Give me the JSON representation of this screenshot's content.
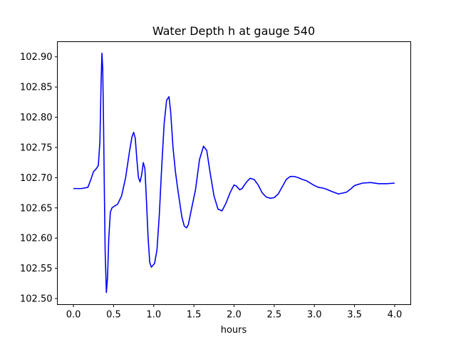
{
  "chart_data": {
    "type": "line",
    "title": "Water Depth h at gauge 540",
    "xlabel": "hours",
    "ylabel": "",
    "xlim": [
      -0.2,
      4.2
    ],
    "ylim": [
      102.49,
      102.925
    ],
    "xticks": [
      0.0,
      0.5,
      1.0,
      1.5,
      2.0,
      2.5,
      3.0,
      3.5,
      4.0
    ],
    "xtick_labels": [
      "0.0",
      "0.5",
      "1.0",
      "1.5",
      "2.0",
      "2.5",
      "3.0",
      "3.5",
      "4.0"
    ],
    "yticks": [
      102.5,
      102.55,
      102.6,
      102.65,
      102.7,
      102.75,
      102.8,
      102.85,
      102.9
    ],
    "ytick_labels": [
      "102.50",
      "102.55",
      "102.60",
      "102.65",
      "102.70",
      "102.75",
      "102.80",
      "102.85",
      "102.90"
    ],
    "grid": false,
    "series": [
      {
        "color": "#0000ff",
        "x": [
          0.0,
          0.1,
          0.18,
          0.22,
          0.25,
          0.28,
          0.31,
          0.33,
          0.345,
          0.355,
          0.365,
          0.375,
          0.385,
          0.395,
          0.41,
          0.425,
          0.44,
          0.46,
          0.48,
          0.5,
          0.55,
          0.6,
          0.65,
          0.7,
          0.73,
          0.75,
          0.77,
          0.79,
          0.81,
          0.83,
          0.85,
          0.87,
          0.89,
          0.91,
          0.93,
          0.95,
          0.97,
          0.99,
          1.01,
          1.04,
          1.07,
          1.1,
          1.13,
          1.16,
          1.19,
          1.21,
          1.24,
          1.27,
          1.3,
          1.35,
          1.38,
          1.41,
          1.43,
          1.47,
          1.52,
          1.57,
          1.62,
          1.66,
          1.7,
          1.75,
          1.8,
          1.85,
          1.9,
          1.95,
          2.0,
          2.03,
          2.07,
          2.1,
          2.15,
          2.2,
          2.25,
          2.3,
          2.35,
          2.4,
          2.45,
          2.5,
          2.55,
          2.6,
          2.65,
          2.7,
          2.75,
          2.8,
          2.85,
          2.9,
          3.0,
          3.05,
          3.1,
          3.15,
          3.2,
          3.3,
          3.4,
          3.45,
          3.5,
          3.55,
          3.6,
          3.7,
          3.8,
          3.9,
          4.0
        ],
        "y": [
          102.682,
          102.682,
          102.684,
          102.698,
          102.71,
          102.714,
          102.72,
          102.76,
          102.86,
          102.906,
          102.88,
          102.79,
          102.68,
          102.58,
          102.51,
          102.535,
          102.6,
          102.643,
          102.65,
          102.652,
          102.656,
          102.67,
          102.7,
          102.745,
          102.768,
          102.775,
          102.765,
          102.73,
          102.7,
          102.693,
          102.705,
          102.725,
          102.715,
          102.66,
          102.6,
          102.56,
          102.552,
          102.555,
          102.558,
          102.58,
          102.64,
          102.72,
          102.79,
          102.828,
          102.834,
          102.81,
          102.75,
          102.71,
          102.68,
          102.635,
          102.62,
          102.617,
          102.622,
          102.648,
          102.68,
          102.73,
          102.752,
          102.745,
          102.71,
          102.67,
          102.648,
          102.645,
          102.658,
          102.675,
          102.688,
          102.686,
          102.68,
          102.682,
          102.692,
          102.699,
          102.697,
          102.688,
          102.675,
          102.668,
          102.666,
          102.667,
          102.673,
          102.685,
          102.697,
          102.702,
          102.702,
          102.7,
          102.697,
          102.695,
          102.687,
          102.684,
          102.683,
          102.681,
          102.678,
          102.673,
          102.676,
          102.681,
          102.687,
          102.689,
          102.691,
          102.692,
          102.69,
          102.69,
          102.691
        ]
      }
    ]
  }
}
